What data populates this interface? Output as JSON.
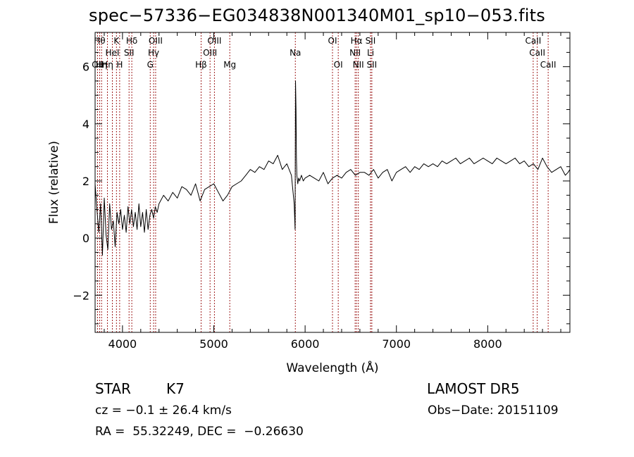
{
  "title": "spec−57336−EG034838N001340M01_sp10−053.fits",
  "footer": {
    "class_label": "STAR",
    "subclass": "K7",
    "survey": "LAMOST DR5",
    "cz": "cz = −0.1 ± 26.4 km/s",
    "obs_date": "Obs−Date: 20151109",
    "radec": "RA =  55.32249, DEC =  −0.26630"
  },
  "chart_data": {
    "type": "line",
    "title": "spec−57336−EG034838N001340M01_sp10−053.fits",
    "xlabel": "Wavelength (Å)",
    "ylabel": "Flux (relative)",
    "xlim": [
      3700,
      8900
    ],
    "ylim": [
      -3.3,
      7.2
    ],
    "xticks": [
      4000,
      5000,
      6000,
      7000,
      8000
    ],
    "yticks": [
      -2,
      0,
      2,
      4,
      6
    ],
    "xtick_labels": [
      "4000",
      "5000",
      "6000",
      "7000",
      "8000"
    ],
    "ytick_labels": [
      "−2",
      "0",
      "2",
      "4",
      "6"
    ],
    "grid": false,
    "line_color": "#000000",
    "line_marker_color": "#a02020",
    "series": [
      {
        "x": [
          3700,
          3720,
          3740,
          3760,
          3780,
          3800,
          3820,
          3840,
          3860,
          3880,
          3900,
          3920,
          3940,
          3960,
          3980,
          4000,
          4020,
          4040,
          4060,
          4080,
          4100,
          4120,
          4140,
          4160,
          4180,
          4200,
          4220,
          4240,
          4260,
          4280,
          4300,
          4320,
          4340,
          4360,
          4380,
          4400,
          4450,
          4500,
          4550,
          4600,
          4650,
          4700,
          4750,
          4800,
          4850,
          4900,
          4950,
          5000,
          5050,
          5100,
          5150,
          5200,
          5250,
          5300,
          5350,
          5400,
          5450,
          5500,
          5550,
          5600,
          5650,
          5700,
          5750,
          5800,
          5850,
          5880,
          5890,
          5895,
          5900,
          5905,
          5910,
          5920,
          5930,
          5940,
          5960,
          5980,
          6000,
          6050,
          6100,
          6150,
          6200,
          6250,
          6300,
          6350,
          6400,
          6450,
          6500,
          6550,
          6600,
          6650,
          6700,
          6750,
          6800,
          6850,
          6900,
          6950,
          7000,
          7050,
          7100,
          7150,
          7200,
          7250,
          7300,
          7350,
          7400,
          7450,
          7500,
          7550,
          7600,
          7650,
          7700,
          7750,
          7800,
          7850,
          7900,
          7950,
          8000,
          8050,
          8100,
          8150,
          8200,
          8250,
          8300,
          8350,
          8400,
          8450,
          8500,
          8550,
          8600,
          8650,
          8700,
          8750,
          8800,
          8850,
          8880,
          8900
        ],
        "y": [
          1.9,
          1.0,
          0.2,
          1.2,
          -0.6,
          1.4,
          0.1,
          -0.4,
          1.2,
          0.3,
          0.6,
          -0.3,
          0.9,
          0.5,
          1.0,
          0.3,
          0.8,
          0.2,
          1.1,
          0.5,
          1.0,
          0.4,
          0.9,
          0.3,
          1.2,
          0.4,
          0.9,
          0.2,
          1.0,
          0.3,
          0.8,
          1.0,
          0.7,
          1.1,
          0.9,
          1.2,
          1.5,
          1.3,
          1.6,
          1.4,
          1.8,
          1.7,
          1.5,
          1.9,
          1.3,
          1.7,
          1.8,
          1.9,
          1.6,
          1.3,
          1.5,
          1.8,
          1.9,
          2.0,
          2.2,
          2.4,
          2.3,
          2.5,
          2.4,
          2.7,
          2.6,
          2.9,
          2.4,
          2.6,
          2.2,
          1.2,
          0.3,
          5.5,
          4.5,
          2.8,
          2.2,
          1.9,
          2.1,
          2.0,
          2.2,
          2.0,
          2.1,
          2.2,
          2.1,
          2.0,
          2.3,
          1.9,
          2.1,
          2.2,
          2.1,
          2.3,
          2.4,
          2.2,
          2.3,
          2.3,
          2.2,
          2.4,
          2.1,
          2.3,
          2.4,
          2.0,
          2.3,
          2.4,
          2.5,
          2.3,
          2.5,
          2.4,
          2.6,
          2.5,
          2.6,
          2.5,
          2.7,
          2.6,
          2.7,
          2.8,
          2.6,
          2.7,
          2.8,
          2.6,
          2.7,
          2.8,
          2.7,
          2.6,
          2.8,
          2.7,
          2.6,
          2.7,
          2.8,
          2.6,
          2.7,
          2.5,
          2.6,
          2.4,
          2.8,
          2.5,
          2.3,
          2.4,
          2.5,
          2.2,
          2.3,
          2.4
        ]
      }
    ],
    "lines": [
      {
        "x": 3727,
        "label": "OII",
        "row": 2
      },
      {
        "x": 3750,
        "label": "Hθ",
        "row": 0
      },
      {
        "x": 3771,
        "label": "Hη",
        "row": 2
      },
      {
        "x": 3835,
        "label": "Hη",
        "row": 2
      },
      {
        "x": 3889,
        "label": "HeI",
        "row": 1
      },
      {
        "x": 3934,
        "label": "K",
        "row": 0
      },
      {
        "x": 3969,
        "label": "H",
        "row": 2
      },
      {
        "x": 4072,
        "label": "SII",
        "row": 1
      },
      {
        "x": 4102,
        "label": "Hδ",
        "row": 0
      },
      {
        "x": 4304,
        "label": "G",
        "row": 2
      },
      {
        "x": 4341,
        "label": "Hγ",
        "row": 1
      },
      {
        "x": 4363,
        "label": "OIII",
        "row": 0
      },
      {
        "x": 4861,
        "label": "Hβ",
        "row": 2
      },
      {
        "x": 4959,
        "label": "OIII",
        "row": 1
      },
      {
        "x": 5007,
        "label": "OIII",
        "row": 0
      },
      {
        "x": 5175,
        "label": "Mg",
        "row": 2
      },
      {
        "x": 5893,
        "label": "Na",
        "row": 1
      },
      {
        "x": 6300,
        "label": "OI",
        "row": 0
      },
      {
        "x": 6363,
        "label": "OI",
        "row": 2
      },
      {
        "x": 6548,
        "label": "NII",
        "row": 1
      },
      {
        "x": 6563,
        "label": "Hα",
        "row": 0
      },
      {
        "x": 6583,
        "label": "NII",
        "row": 2
      },
      {
        "x": 6716,
        "label": "SII",
        "row": 0
      },
      {
        "x": 6717,
        "label": "Li",
        "row": 1
      },
      {
        "x": 6731,
        "label": "SII",
        "row": 2
      },
      {
        "x": 8498,
        "label": "CaII",
        "row": 0
      },
      {
        "x": 8542,
        "label": "CaII",
        "row": 1
      },
      {
        "x": 8662,
        "label": "CaII",
        "row": 2
      }
    ]
  }
}
